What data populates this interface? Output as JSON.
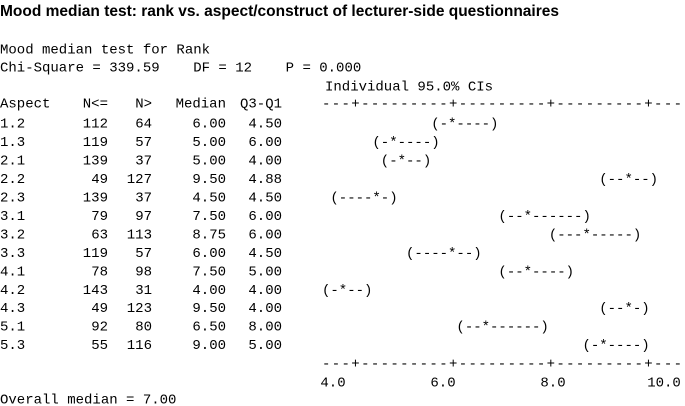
{
  "title": "Mood median test: rank vs. aspect/construct of lecturer-side questionnaires",
  "output": {
    "heading": "Mood median test for Rank",
    "stats": "Chi-Square = 339.59    DF = 12    P = 0.000",
    "ci_heading": "Individual 95.0% CIs",
    "columns": [
      "Aspect",
      "N<=",
      "N>",
      "Median",
      "Q3-Q1"
    ],
    "ruler": "---+---------+---------+---------+---",
    "rows": [
      {
        "aspect": "1.2",
        "n_le": 112,
        "n_gt": 64,
        "median": "6.00",
        "q3_q1": "4.50",
        "ci": "             (-*----)"
      },
      {
        "aspect": "1.3",
        "n_le": 119,
        "n_gt": 57,
        "median": "5.00",
        "q3_q1": "6.00",
        "ci": "      (-*----)"
      },
      {
        "aspect": "2.1",
        "n_le": 139,
        "n_gt": 37,
        "median": "5.00",
        "q3_q1": "4.00",
        "ci": "       (-*--)"
      },
      {
        "aspect": "2.2",
        "n_le": 49,
        "n_gt": 127,
        "median": "9.50",
        "q3_q1": "4.88",
        "ci": "                                 (--*--)"
      },
      {
        "aspect": "2.3",
        "n_le": 139,
        "n_gt": 37,
        "median": "4.50",
        "q3_q1": "4.50",
        "ci": " (----*-)"
      },
      {
        "aspect": "3.1",
        "n_le": 79,
        "n_gt": 97,
        "median": "7.50",
        "q3_q1": "6.00",
        "ci": "                     (--*------)"
      },
      {
        "aspect": "3.2",
        "n_le": 63,
        "n_gt": 113,
        "median": "8.75",
        "q3_q1": "6.00",
        "ci": "                           (---*-----)"
      },
      {
        "aspect": "3.3",
        "n_le": 119,
        "n_gt": 57,
        "median": "6.00",
        "q3_q1": "4.50",
        "ci": "          (----*--)"
      },
      {
        "aspect": "4.1",
        "n_le": 78,
        "n_gt": 98,
        "median": "7.50",
        "q3_q1": "5.00",
        "ci": "                     (--*----)"
      },
      {
        "aspect": "4.2",
        "n_le": 143,
        "n_gt": 31,
        "median": "4.00",
        "q3_q1": "4.00",
        "ci": "(-*--)"
      },
      {
        "aspect": "4.3",
        "n_le": 49,
        "n_gt": 123,
        "median": "9.50",
        "q3_q1": "4.00",
        "ci": "                                 (--*-)"
      },
      {
        "aspect": "5.1",
        "n_le": 92,
        "n_gt": 80,
        "median": "6.50",
        "q3_q1": "8.00",
        "ci": "                (--*------)"
      },
      {
        "aspect": "5.3",
        "n_le": 55,
        "n_gt": 116,
        "median": "9.00",
        "q3_q1": "5.00",
        "ci": "                               (-*----)"
      }
    ],
    "scale": [
      "4.0",
      "6.0",
      "8.0",
      "10.0"
    ],
    "overall": "Overall median = 7.00"
  }
}
